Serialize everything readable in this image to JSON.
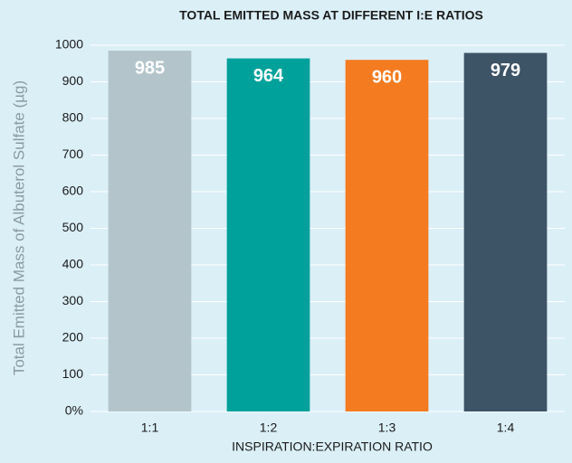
{
  "chart_data": {
    "type": "bar",
    "title": "TOTAL EMITTED MASS AT DIFFERENT I:E RATIOS",
    "x_label": "INSPIRATION:EXPIRATION RATIO",
    "y_label": "Total Emitted Mass of Albuterol Sulfate (µg)",
    "categories": [
      "1:1",
      "1:2",
      "1:3",
      "1:4"
    ],
    "values": [
      985,
      964,
      960,
      979
    ],
    "colors": [
      "#b3c5cb",
      "#00a19a",
      "#f47b20",
      "#3d5366"
    ],
    "ylim": [
      0,
      1000
    ],
    "yticks": [
      {
        "value": 0,
        "label": "0%"
      },
      100,
      200,
      300,
      400,
      500,
      600,
      700,
      800,
      900,
      1000
    ],
    "grid": true
  }
}
